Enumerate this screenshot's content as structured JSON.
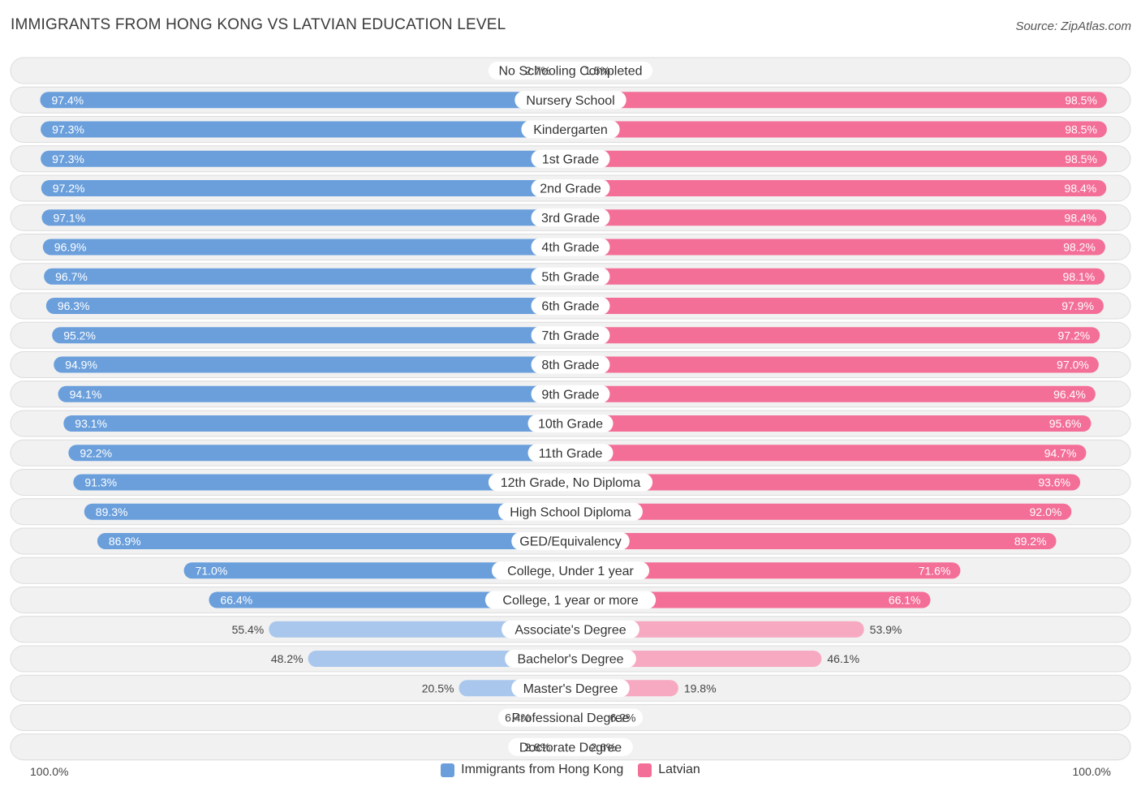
{
  "header": {
    "title": "IMMIGRANTS FROM HONG KONG VS LATVIAN EDUCATION LEVEL",
    "source": "Source: ZipAtlas.com"
  },
  "colors": {
    "left_strong": "#6a9fdc",
    "left_light": "#a9c7ec",
    "right_strong": "#f36f98",
    "right_light": "#f6a9c1"
  },
  "chart_data": {
    "type": "bar",
    "orientation": "horizontal-diverging",
    "categories": [
      "No Schooling Completed",
      "Nursery School",
      "Kindergarten",
      "1st Grade",
      "2nd Grade",
      "3rd Grade",
      "4th Grade",
      "5th Grade",
      "6th Grade",
      "7th Grade",
      "8th Grade",
      "9th Grade",
      "10th Grade",
      "11th Grade",
      "12th Grade, No Diploma",
      "High School Diploma",
      "GED/Equivalency",
      "College, Under 1 year",
      "College, 1 year or more",
      "Associate's Degree",
      "Bachelor's Degree",
      "Master's Degree",
      "Professional Degree",
      "Doctorate Degree"
    ],
    "series": [
      {
        "name": "Immigrants from Hong Kong",
        "values": [
          2.7,
          97.4,
          97.3,
          97.3,
          97.2,
          97.1,
          96.9,
          96.7,
          96.3,
          95.2,
          94.9,
          94.1,
          93.1,
          92.2,
          91.3,
          89.3,
          86.9,
          71.0,
          66.4,
          55.4,
          48.2,
          20.5,
          6.4,
          2.8
        ],
        "labels": [
          "2.7%",
          "97.4%",
          "97.3%",
          "97.3%",
          "97.2%",
          "97.1%",
          "96.9%",
          "96.7%",
          "96.3%",
          "95.2%",
          "94.9%",
          "94.1%",
          "93.1%",
          "92.2%",
          "91.3%",
          "89.3%",
          "86.9%",
          "71.0%",
          "66.4%",
          "55.4%",
          "48.2%",
          "20.5%",
          "6.4%",
          "2.8%"
        ]
      },
      {
        "name": "Latvian",
        "values": [
          1.5,
          98.5,
          98.5,
          98.5,
          98.4,
          98.4,
          98.2,
          98.1,
          97.9,
          97.2,
          97.0,
          96.4,
          95.6,
          94.7,
          93.6,
          92.0,
          89.2,
          71.6,
          66.1,
          53.9,
          46.1,
          19.8,
          6.2,
          2.6
        ],
        "labels": [
          "1.5%",
          "98.5%",
          "98.5%",
          "98.5%",
          "98.4%",
          "98.4%",
          "98.2%",
          "98.1%",
          "97.9%",
          "97.2%",
          "97.0%",
          "96.4%",
          "95.6%",
          "94.7%",
          "93.6%",
          "92.0%",
          "89.2%",
          "71.6%",
          "66.1%",
          "53.9%",
          "46.1%",
          "19.8%",
          "6.2%",
          "2.6%"
        ]
      }
    ],
    "xlim": [
      0,
      100
    ],
    "axis_left_label": "100.0%",
    "axis_right_label": "100.0%",
    "legend_position": "bottom-center"
  }
}
